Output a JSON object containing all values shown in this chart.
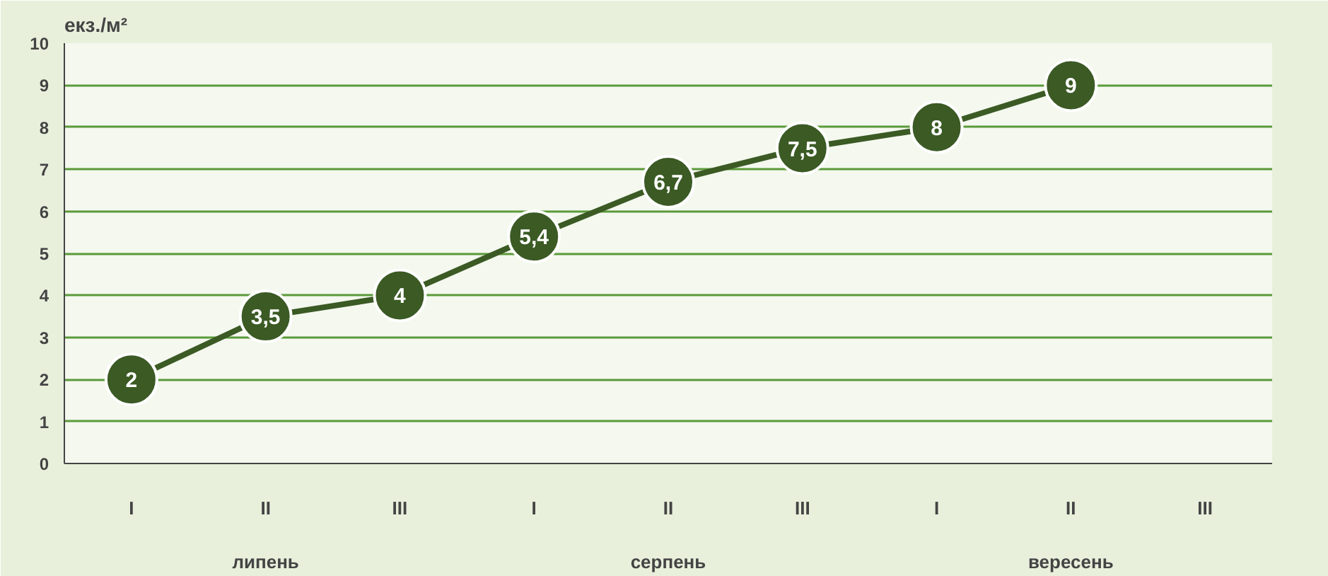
{
  "chart_data": {
    "type": "line",
    "ylabel": "екз./м²",
    "categories": [
      "I",
      "II",
      "III",
      "I",
      "II",
      "III",
      "I",
      "II",
      "III"
    ],
    "annotations": [
      "липень",
      "серпень",
      "вересень"
    ],
    "series": [
      {
        "color": "#3b5a24",
        "values": [
          2,
          3.5,
          4,
          5.4,
          6.7,
          7.5,
          8,
          9,
          null
        ],
        "value_labels": [
          "2",
          "3,5",
          "4",
          "5,4",
          "6,7",
          "7,5",
          "8",
          "9",
          null
        ]
      }
    ],
    "ylim": [
      0,
      10
    ],
    "yticks": [
      0,
      1,
      2,
      3,
      4,
      5,
      6,
      7,
      8,
      9,
      10
    ],
    "grid": "y",
    "marker": "circle",
    "line_style": "solid"
  }
}
